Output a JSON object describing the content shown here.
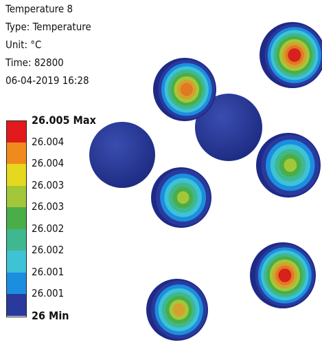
{
  "header": {
    "lines": [
      "Temperature 8",
      "Type: Temperature",
      "Unit: °C",
      "Time: 82800",
      "06-04-2019 16:28"
    ]
  },
  "legend": {
    "labels": [
      "26.005 Max",
      "26.004",
      "26.004",
      "26.003",
      "26.003",
      "26.002",
      "26.002",
      "26.001",
      "26.001",
      "26 Min"
    ],
    "colors": [
      "#e21a1c",
      "#f08a1c",
      "#e6d81e",
      "#a2c83a",
      "#4aae48",
      "#3fb890",
      "#3ec2d6",
      "#1c8ee0",
      "#2a3a9c"
    ]
  }
}
